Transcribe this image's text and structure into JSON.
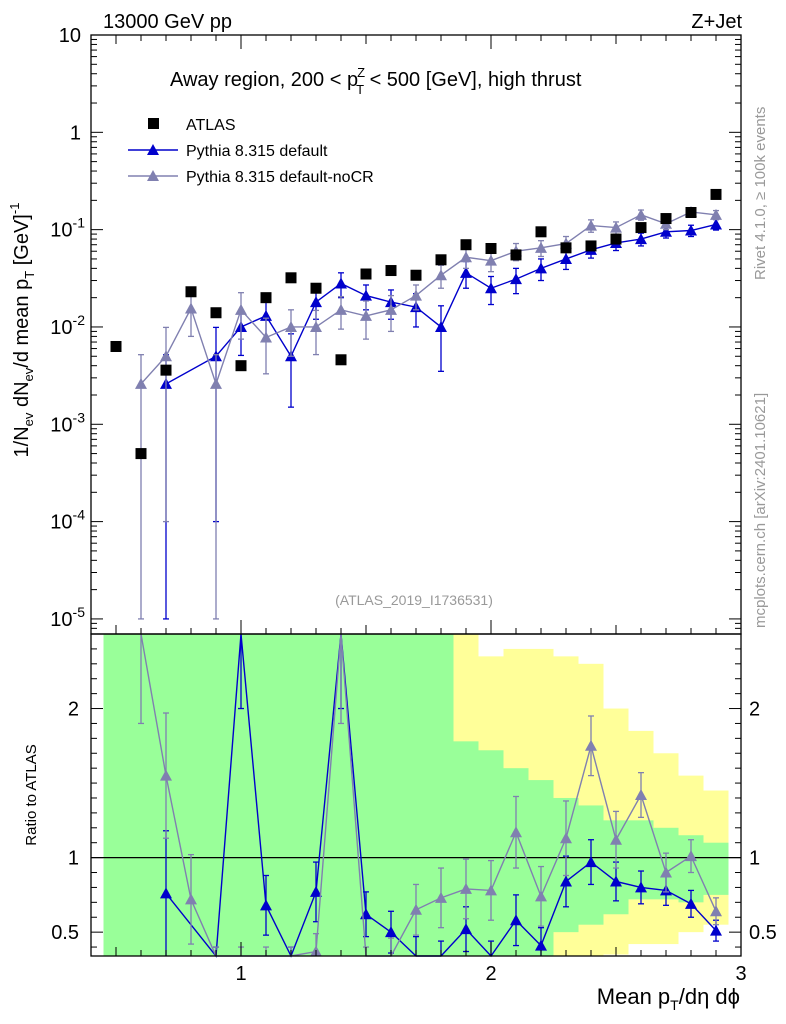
{
  "chart_data": {
    "type": "scatter",
    "header_left": "13000 GeV pp",
    "header_right": "Z+Jet",
    "title_text": "Away region, 200 < p",
    "title_sup": "Z",
    "title_sub": "T",
    "title_tail": " < 500 [GeV], high thrust",
    "ylabel_text": "1/N",
    "ylabel_sub1": "ev",
    "ylabel_mid": " dN",
    "ylabel_sub2": "ev",
    "ylabel_mid2": "/d mean p",
    "ylabel_sub3": "T",
    "ylabel_tail": " [GeV]",
    "ylabel_sup": "-1",
    "ratio_ylabel": "Ratio to ATLAS",
    "xlabel_text": "Mean p",
    "xlabel_sub": "T",
    "xlabel_tail": "/dη dϕ",
    "watermark": "(ATLAS_2019_I1736531)",
    "side_label_top": "Rivet 4.1.0, ≥ 100k events",
    "side_label_bottom": "mcplots.cern.ch [arXiv:2401.10621]",
    "xlim": [
      0.4,
      3.0
    ],
    "ylim": [
      7e-06,
      10
    ],
    "ratio_ylim": [
      0.34,
      2.5
    ],
    "x_ticks": [
      {
        "v": 1,
        "label": "1"
      },
      {
        "v": 2,
        "label": "2"
      },
      {
        "v": 3,
        "label": "3"
      }
    ],
    "y_ticks": [
      {
        "e": 1,
        "base": "10",
        "sup": ""
      },
      {
        "e": 0,
        "base": "1",
        "sup": ""
      },
      {
        "e": -1,
        "base": "10",
        "sup": "-1"
      },
      {
        "e": -2,
        "base": "10",
        "sup": "-2"
      },
      {
        "e": -3,
        "base": "10",
        "sup": "-3"
      },
      {
        "e": -4,
        "base": "10",
        "sup": "-4"
      },
      {
        "e": -5,
        "base": "10",
        "sup": "-5"
      }
    ],
    "ratio_ticks": [
      {
        "v": 0.5,
        "label": "0.5"
      },
      {
        "v": 1,
        "label": "1"
      },
      {
        "v": 2,
        "label": "2"
      }
    ],
    "colors": {
      "atlas": "#000000",
      "default": "#0000cc",
      "nocr": "#8080b0",
      "green": "#99ff99",
      "yellow": "#ffff99"
    },
    "legend": [
      {
        "name": "ATLAS",
        "marker": "square"
      },
      {
        "name": "Pythia 8.315 default",
        "marker": "triangle"
      },
      {
        "name": "Pythia 8.315 default-noCR",
        "marker": "triangle"
      }
    ],
    "bins": [
      0.45,
      0.55,
      0.65,
      0.75,
      0.85,
      0.95,
      1.05,
      1.15,
      1.25,
      1.35,
      1.45,
      1.55,
      1.65,
      1.75,
      1.85,
      1.95,
      2.05,
      2.15,
      2.25,
      2.35,
      2.45,
      2.55,
      2.65,
      2.75,
      2.85,
      2.95
    ],
    "atlas": [
      0.0063,
      0.0005,
      0.0036,
      0.023,
      0.014,
      0.004,
      0.02,
      0.032,
      0.025,
      0.0046,
      0.035,
      0.038,
      0.034,
      0.049,
      0.07,
      0.064,
      0.055,
      0.095,
      0.065,
      0.068,
      0.08,
      0.105,
      0.13,
      0.15,
      0.23
    ],
    "band_green": [
      [
        0,
        2.5
      ],
      [
        0,
        2.5
      ],
      [
        0,
        2.5
      ],
      [
        0,
        2.5
      ],
      [
        0,
        2.5
      ],
      [
        0,
        2.5
      ],
      [
        0,
        2.5
      ],
      [
        0,
        2.5
      ],
      [
        0,
        2.5
      ],
      [
        0,
        2.5
      ],
      [
        0,
        2.5
      ],
      [
        0.34,
        2.5
      ],
      [
        0.34,
        2.5
      ],
      [
        0.34,
        2.5
      ],
      [
        0.34,
        1.78
      ],
      [
        0.34,
        1.72
      ],
      [
        0.34,
        1.6
      ],
      [
        0.34,
        1.52
      ],
      [
        0.5,
        1.4
      ],
      [
        0.55,
        1.35
      ],
      [
        0.62,
        1.25
      ],
      [
        0.72,
        1.25
      ],
      [
        0.72,
        1.2
      ],
      [
        0.7,
        1.15
      ],
      [
        0.75,
        1.1
      ],
      [
        0.8,
        1.02
      ]
    ],
    "band_yellow": [
      [
        0,
        2.5
      ],
      [
        0,
        2.5
      ],
      [
        0,
        2.5
      ],
      [
        0,
        2.5
      ],
      [
        0,
        2.5
      ],
      [
        0,
        2.5
      ],
      [
        0,
        2.5
      ],
      [
        0,
        2.5
      ],
      [
        0,
        2.5
      ],
      [
        0,
        2.5
      ],
      [
        0,
        2.5
      ],
      [
        0,
        2.5
      ],
      [
        0.34,
        2.5
      ],
      [
        0.34,
        2.5
      ],
      [
        0.34,
        2.5
      ],
      [
        0.34,
        2.35
      ],
      [
        0.34,
        2.4
      ],
      [
        0.34,
        2.4
      ],
      [
        0.34,
        2.35
      ],
      [
        0.34,
        2.3
      ],
      [
        0.35,
        2.0
      ],
      [
        0.42,
        1.85
      ],
      [
        0.42,
        1.7
      ],
      [
        0.5,
        1.55
      ],
      [
        0.55,
        1.45
      ],
      [
        0.42,
        1.5
      ]
    ],
    "series": [
      {
        "name": "Pythia 8.315 default",
        "x": [
          0.7,
          0.9,
          1.0,
          1.1,
          1.2,
          1.3,
          1.4,
          1.5,
          1.6,
          1.7,
          1.8,
          1.9,
          2.0,
          2.1,
          2.2,
          2.3,
          2.4,
          2.5,
          2.6,
          2.7,
          2.8,
          2.9
        ],
        "y": [
          0.0026,
          0.005,
          0.01,
          0.013,
          0.005,
          0.018,
          0.028,
          0.021,
          0.018,
          0.016,
          0.01,
          0.036,
          0.025,
          0.031,
          0.04,
          0.05,
          0.062,
          0.073,
          0.08,
          0.095,
          0.098,
          0.113
        ],
        "err": [
          0.00259,
          0.0049,
          0.0049,
          0.0055,
          0.0035,
          0.006,
          0.008,
          0.006,
          0.006,
          0.006,
          0.0065,
          0.011,
          0.008,
          0.009,
          0.01,
          0.011,
          0.011,
          0.012,
          0.012,
          0.013,
          0.013,
          0.014
        ],
        "ratio": [
          0.76,
          0.3,
          2.5,
          0.68,
          0.3,
          0.77,
          2.5,
          0.62,
          0.5,
          0.34,
          0.34,
          0.52,
          0.34,
          0.58,
          0.41,
          0.84,
          0.97,
          0.84,
          0.8,
          0.78,
          0.69,
          0.51
        ],
        "ratio_err": [
          0.42,
          0.1,
          0.5,
          0.2,
          0.1,
          0.2,
          0.5,
          0.15,
          0.14,
          0.13,
          0.1,
          0.15,
          0.1,
          0.17,
          0.12,
          0.17,
          0.15,
          0.13,
          0.11,
          0.1,
          0.09,
          0.07
        ]
      },
      {
        "name": "Pythia 8.315 default-noCR",
        "x": [
          0.6,
          0.7,
          0.8,
          0.9,
          1.0,
          1.1,
          1.2,
          1.3,
          1.4,
          1.5,
          1.6,
          1.7,
          1.8,
          1.9,
          2.0,
          2.1,
          2.2,
          2.3,
          2.4,
          2.5,
          2.6,
          2.7,
          2.8,
          2.9
        ],
        "y": [
          0.0026,
          0.005,
          0.0155,
          0.0026,
          0.015,
          0.0078,
          0.01,
          0.01,
          0.015,
          0.013,
          0.015,
          0.021,
          0.034,
          0.052,
          0.048,
          0.06,
          0.065,
          0.072,
          0.11,
          0.105,
          0.142,
          0.115,
          0.152,
          0.142
        ],
        "err": [
          0.00259,
          0.0049,
          0.0075,
          0.00259,
          0.0075,
          0.0045,
          0.005,
          0.0048,
          0.0055,
          0.0055,
          0.006,
          0.006,
          0.009,
          0.012,
          0.011,
          0.012,
          0.012,
          0.013,
          0.016,
          0.015,
          0.017,
          0.015,
          0.016,
          0.015
        ],
        "ratio": [
          2.5,
          1.55,
          0.72,
          0.3,
          0.3,
          0.3,
          0.3,
          0.37,
          2.5,
          0.3,
          0.34,
          0.65,
          0.73,
          0.79,
          0.78,
          1.17,
          0.74,
          1.13,
          1.75,
          1.12,
          1.42,
          0.9,
          1.01,
          0.64
        ],
        "ratio_err": [
          0.6,
          0.42,
          0.3,
          0.1,
          0.1,
          0.1,
          0.1,
          0.12,
          0.6,
          0.1,
          0.12,
          0.17,
          0.2,
          0.2,
          0.2,
          0.24,
          0.2,
          0.25,
          0.2,
          0.19,
          0.15,
          0.13,
          0.11,
          0.09
        ]
      }
    ]
  }
}
